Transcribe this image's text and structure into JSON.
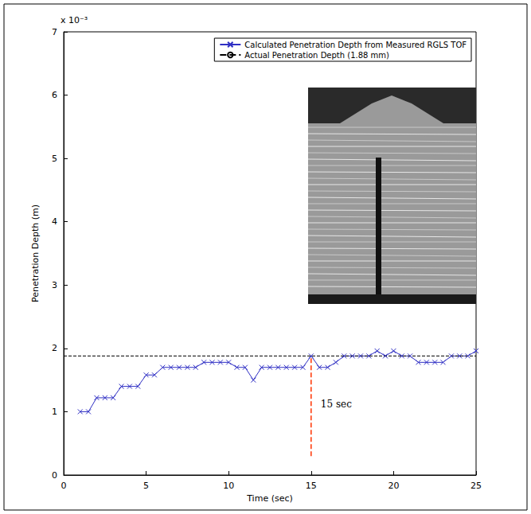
{
  "chart_data": {
    "type": "line",
    "x_label": "Time (sec)",
    "y_label": "Penetration Depth (m)",
    "series": [
      {
        "name": "Calculated Penetration Depth from Measured RGLS TOF",
        "color": "#2f2fc4",
        "marker": "x",
        "line_style": "solid",
        "x": [
          1,
          1.5,
          2,
          2.5,
          3,
          3.5,
          4,
          4.5,
          5,
          5.5,
          6,
          6.5,
          7,
          7.5,
          8,
          8.5,
          9,
          9.5,
          10,
          10.5,
          11,
          11.5,
          12,
          12.5,
          13,
          13.5,
          14,
          14.5,
          15,
          15.5,
          16,
          16.5,
          17,
          17.5,
          18,
          18.5,
          19,
          19.5,
          20,
          20.5,
          21,
          21.5,
          22,
          22.5,
          23,
          23.5,
          24,
          24.5,
          25
        ],
        "values": [
          0.001,
          0.001,
          0.00122,
          0.00122,
          0.00122,
          0.0014,
          0.0014,
          0.0014,
          0.00158,
          0.00158,
          0.0017,
          0.0017,
          0.0017,
          0.0017,
          0.0017,
          0.00178,
          0.00178,
          0.00178,
          0.00178,
          0.0017,
          0.0017,
          0.0015,
          0.0017,
          0.0017,
          0.0017,
          0.0017,
          0.0017,
          0.0017,
          0.00188,
          0.0017,
          0.0017,
          0.00178,
          0.00188,
          0.00188,
          0.00188,
          0.00188,
          0.00196,
          0.00188,
          0.00196,
          0.00188,
          0.00188,
          0.00178,
          0.00178,
          0.00178,
          0.00178,
          0.00188,
          0.00188,
          0.00188,
          0.00196
        ]
      },
      {
        "name": "Actual Penetration Depth (1.88 mm)",
        "color": "#000000",
        "marker": "none",
        "line_style": "dashed",
        "x": [
          0,
          25
        ],
        "values": [
          0.00188,
          0.00188
        ]
      }
    ],
    "annotations": [
      {
        "text": "x 10⁻³"
      },
      {
        "text": "15 sec",
        "x": 15,
        "y": [
          0.0003,
          0.00188
        ],
        "color": "#ff3300",
        "line_style": "dashed"
      }
    ],
    "xlim": [
      0,
      25
    ],
    "xticks": [
      0,
      5,
      10,
      15,
      20,
      25
    ],
    "ylim": [
      0,
      0.007
    ],
    "yticks": [
      {
        "value": 0,
        "label": "0"
      },
      {
        "value": 0.001,
        "label": "1"
      },
      {
        "value": 0.002,
        "label": "2"
      },
      {
        "value": 0.003,
        "label": "3"
      },
      {
        "value": 0.004,
        "label": "4"
      },
      {
        "value": 0.005,
        "label": "5"
      },
      {
        "value": 0.006,
        "label": "6"
      },
      {
        "value": 0.007,
        "label": "7"
      }
    ],
    "legend": "top-right",
    "grid": false
  }
}
